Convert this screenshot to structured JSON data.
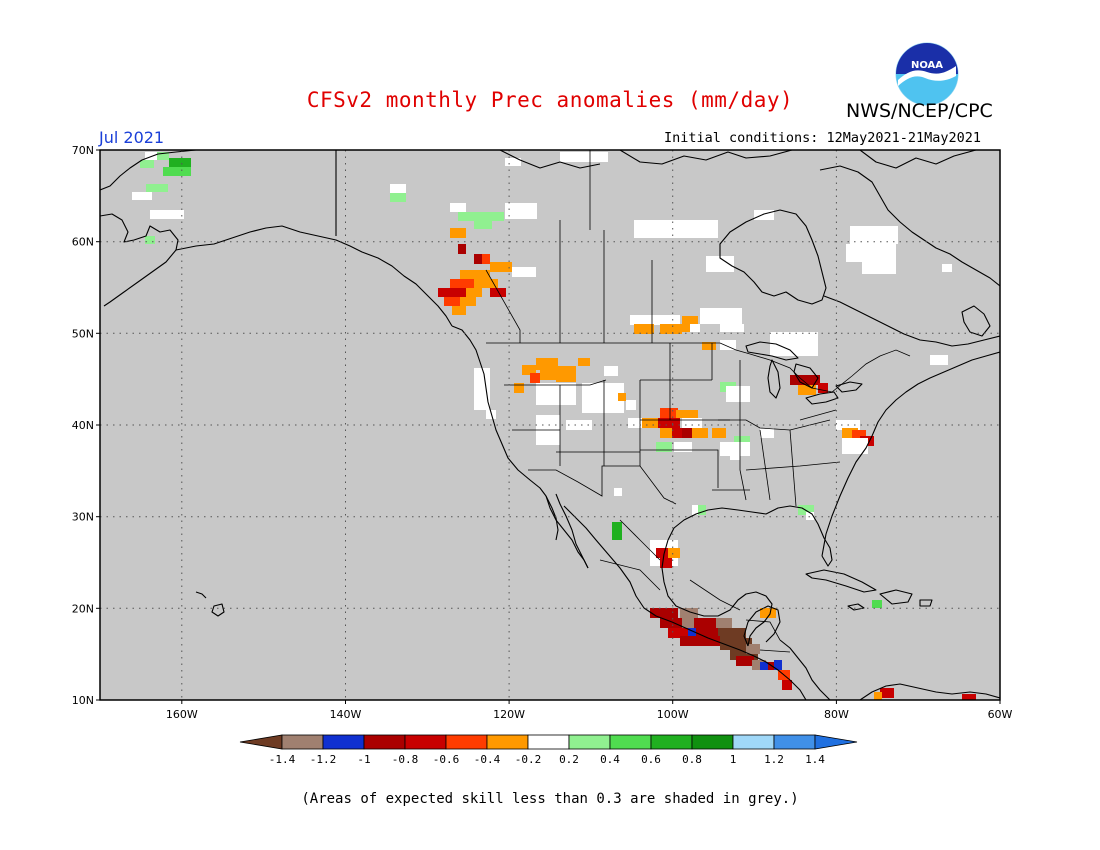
{
  "header": {
    "title": "CFSv2 monthly Prec anomalies (mm/day)",
    "agency": "NWS/NCEP/CPC",
    "logo_text": "NOAA",
    "month": "Jul 2021",
    "initial_conditions": "Initial conditions: 12May2021-21May2021"
  },
  "map": {
    "lat_labels": [
      "70N",
      "60N",
      "50N",
      "40N",
      "30N",
      "20N",
      "10N"
    ],
    "lon_labels": [
      "160W",
      "140W",
      "120W",
      "100W",
      "80W",
      "60W"
    ],
    "ocean_color": "#c8c8c8",
    "coast_color": "#000000"
  },
  "colorbar": {
    "labels": [
      "-1.4",
      "-1.2",
      "-1",
      "-0.8",
      "-0.6",
      "-0.4",
      "-0.2",
      "0.2",
      "0.4",
      "0.6",
      "0.8",
      "1",
      "1.2",
      "1.4"
    ],
    "colors": [
      "#6e3b23",
      "#a08070",
      "#1030d0",
      "#aa0000",
      "#c80000",
      "#ff3c00",
      "#ff9900",
      "#ffffff",
      "#90f090",
      "#50dc50",
      "#20b020",
      "#109010",
      "#a0d8f8",
      "#4090e8",
      "#2070e0"
    ]
  },
  "footnote": "(Areas of expected skill less than 0.3 are shaded in grey.)"
}
